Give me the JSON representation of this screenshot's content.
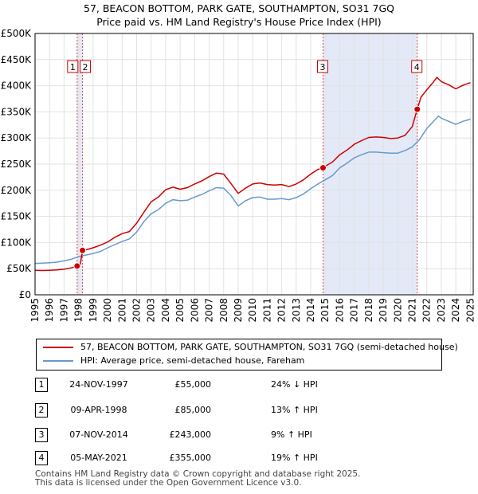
{
  "title_line1": "57, BEACON BOTTOM, PARK GATE, SOUTHAMPTON, SO31 7GQ",
  "title_line2": "Price paid vs. HM Land Registry's House Price Index (HPI)",
  "chart_data": {
    "type": "line",
    "xlim": [
      1995,
      2025.2
    ],
    "ylim": [
      0,
      500000
    ],
    "yticks": [
      0,
      50000,
      100000,
      150000,
      200000,
      250000,
      300000,
      350000,
      400000,
      450000,
      500000
    ],
    "ytick_labels": [
      "£0",
      "£50K",
      "£100K",
      "£150K",
      "£200K",
      "£250K",
      "£300K",
      "£350K",
      "£400K",
      "£450K",
      "£500K"
    ],
    "xticks": [
      1995,
      1996,
      1997,
      1998,
      1999,
      2000,
      2001,
      2002,
      2003,
      2004,
      2005,
      2006,
      2007,
      2008,
      2009,
      2010,
      2011,
      2012,
      2013,
      2014,
      2015,
      2016,
      2017,
      2018,
      2019,
      2020,
      2021,
      2022,
      2023,
      2024,
      2025
    ],
    "xtick_labels": [
      "1995",
      "1996",
      "1997",
      "1998",
      "1999",
      "2000",
      "2001",
      "2002",
      "2003",
      "2004",
      "2005",
      "2006",
      "2007",
      "2008",
      "2009",
      "2010",
      "2011",
      "2012",
      "2013",
      "2014",
      "2015",
      "2016",
      "2017",
      "2018",
      "2019",
      "2020",
      "2021",
      "2022",
      "2023",
      "2024",
      "2025"
    ],
    "shaded_ranges": [
      [
        1997.9,
        1998.27
      ],
      [
        2014.85,
        2021.34
      ]
    ],
    "series": [
      {
        "name": "57, BEACON BOTTOM, PARK GATE, SOUTHAMPTON, SO31 7GQ (semi-detached house)",
        "color": "#cc0000",
        "points": [
          [
            1995,
            47000
          ],
          [
            1995.5,
            46500
          ],
          [
            1996,
            47000
          ],
          [
            1996.5,
            47500
          ],
          [
            1997,
            49000
          ],
          [
            1997.5,
            51500
          ],
          [
            1997.9,
            55000
          ],
          [
            1998.1,
            56000
          ],
          [
            1998.27,
            85000
          ],
          [
            1998.5,
            86000
          ],
          [
            1999,
            90000
          ],
          [
            1999.5,
            95000
          ],
          [
            2000,
            101000
          ],
          [
            2000.5,
            110000
          ],
          [
            2001,
            117000
          ],
          [
            2001.5,
            121000
          ],
          [
            2002,
            137000
          ],
          [
            2002.5,
            158000
          ],
          [
            2003,
            178000
          ],
          [
            2003.5,
            187000
          ],
          [
            2004,
            201000
          ],
          [
            2004.5,
            206000
          ],
          [
            2005,
            202000
          ],
          [
            2005.5,
            205000
          ],
          [
            2006,
            212000
          ],
          [
            2006.5,
            218000
          ],
          [
            2007,
            226000
          ],
          [
            2007.5,
            233000
          ],
          [
            2008,
            231000
          ],
          [
            2008.5,
            213000
          ],
          [
            2009,
            194000
          ],
          [
            2009.5,
            204000
          ],
          [
            2010,
            212000
          ],
          [
            2010.5,
            214000
          ],
          [
            2011,
            211000
          ],
          [
            2011.5,
            210000
          ],
          [
            2012,
            211000
          ],
          [
            2012.5,
            207000
          ],
          [
            2013,
            212000
          ],
          [
            2013.5,
            220000
          ],
          [
            2014,
            231000
          ],
          [
            2014.5,
            240000
          ],
          [
            2014.85,
            243000
          ],
          [
            2015,
            246000
          ],
          [
            2015.5,
            254000
          ],
          [
            2016,
            268000
          ],
          [
            2016.5,
            277000
          ],
          [
            2017,
            288000
          ],
          [
            2017.5,
            295000
          ],
          [
            2018,
            301000
          ],
          [
            2018.5,
            302000
          ],
          [
            2019,
            301000
          ],
          [
            2019.5,
            299000
          ],
          [
            2020,
            300000
          ],
          [
            2020.5,
            305000
          ],
          [
            2021,
            322000
          ],
          [
            2021.34,
            355000
          ],
          [
            2021.6,
            378000
          ],
          [
            2022,
            392000
          ],
          [
            2022.4,
            405000
          ],
          [
            2022.7,
            416000
          ],
          [
            2023,
            408000
          ],
          [
            2023.5,
            402000
          ],
          [
            2024,
            394000
          ],
          [
            2024.5,
            401000
          ],
          [
            2025,
            406000
          ]
        ]
      },
      {
        "name": "HPI: Average price, semi-detached house, Fareham",
        "color": "#6699cc",
        "points": [
          [
            1995,
            60000
          ],
          [
            1995.5,
            60500
          ],
          [
            1996,
            61500
          ],
          [
            1996.5,
            62500
          ],
          [
            1997,
            65000
          ],
          [
            1997.5,
            68000
          ],
          [
            1998,
            73000
          ],
          [
            1998.5,
            76000
          ],
          [
            1999,
            79000
          ],
          [
            1999.5,
            83000
          ],
          [
            2000,
            90000
          ],
          [
            2000.5,
            96000
          ],
          [
            2001,
            102000
          ],
          [
            2001.5,
            107000
          ],
          [
            2002,
            120000
          ],
          [
            2002.5,
            140000
          ],
          [
            2003,
            155000
          ],
          [
            2003.5,
            163000
          ],
          [
            2004,
            175000
          ],
          [
            2004.5,
            182000
          ],
          [
            2005,
            180000
          ],
          [
            2005.5,
            181000
          ],
          [
            2006,
            187000
          ],
          [
            2006.5,
            192000
          ],
          [
            2007,
            199000
          ],
          [
            2007.5,
            205000
          ],
          [
            2008,
            204000
          ],
          [
            2008.5,
            190000
          ],
          [
            2009,
            170000
          ],
          [
            2009.5,
            180000
          ],
          [
            2010,
            186000
          ],
          [
            2010.5,
            187000
          ],
          [
            2011,
            183000
          ],
          [
            2011.5,
            183000
          ],
          [
            2012,
            184000
          ],
          [
            2012.5,
            182000
          ],
          [
            2013,
            186000
          ],
          [
            2013.5,
            193000
          ],
          [
            2014,
            203000
          ],
          [
            2014.5,
            212000
          ],
          [
            2015,
            220000
          ],
          [
            2015.5,
            228000
          ],
          [
            2016,
            243000
          ],
          [
            2016.5,
            252000
          ],
          [
            2017,
            262000
          ],
          [
            2017.5,
            268000
          ],
          [
            2018,
            273000
          ],
          [
            2018.5,
            273000
          ],
          [
            2019,
            272000
          ],
          [
            2019.5,
            271000
          ],
          [
            2020,
            271000
          ],
          [
            2020.5,
            276000
          ],
          [
            2021,
            283000
          ],
          [
            2021.5,
            297000
          ],
          [
            2022,
            318000
          ],
          [
            2022.5,
            333000
          ],
          [
            2022.8,
            342000
          ],
          [
            2023,
            338000
          ],
          [
            2023.5,
            332000
          ],
          [
            2024,
            326000
          ],
          [
            2024.5,
            332000
          ],
          [
            2025,
            336000
          ]
        ]
      }
    ],
    "sales": [
      {
        "num": "1",
        "x": 1997.9,
        "y": 55000
      },
      {
        "num": "2",
        "x": 1998.27,
        "y": 85000
      },
      {
        "num": "3",
        "x": 2014.85,
        "y": 243000
      },
      {
        "num": "4",
        "x": 2021.34,
        "y": 355000
      }
    ]
  },
  "legend": {
    "items": [
      {
        "label": "57, BEACON BOTTOM, PARK GATE, SOUTHAMPTON, SO31 7GQ (semi-detached house)",
        "color": "#cc0000"
      },
      {
        "label": "HPI: Average price, semi-detached house, Fareham",
        "color": "#6699cc"
      }
    ]
  },
  "transactions": [
    {
      "num": "1",
      "date": "24-NOV-1997",
      "price": "£55,000",
      "pct": "24% ↓ HPI"
    },
    {
      "num": "2",
      "date": "09-APR-1998",
      "price": "£85,000",
      "pct": "13% ↑ HPI"
    },
    {
      "num": "3",
      "date": "07-NOV-2014",
      "price": "£243,000",
      "pct": "9% ↑ HPI"
    },
    {
      "num": "4",
      "date": "05-MAY-2021",
      "price": "£355,000",
      "pct": "19% ↑ HPI"
    }
  ],
  "footer": {
    "line1": "Contains HM Land Registry data © Crown copyright and database right 2025.",
    "line2": "This data is licensed under the Open Government Licence v3.0."
  }
}
